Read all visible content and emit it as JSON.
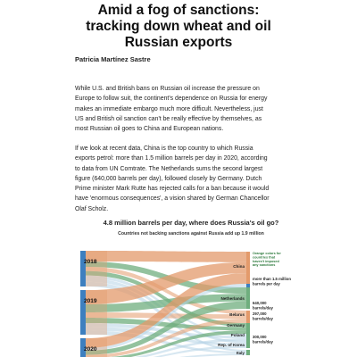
{
  "article": {
    "title_lines": [
      "Amid a fog of sanctions:",
      "tracking down wheat and oil",
      "Russian exports"
    ],
    "author": "Patricia Martínez Sastre",
    "paragraph1_lines": [
      "While U.S. and British bans on Russian oil increase the pressure on",
      "Europe to follow suit, the continent's dependence on Russia for energy",
      "makes an immediate embargo much more difficult. Nevertheless, just",
      "US and British oil sanction can't be really effective by themselves, as",
      "most Russian oil goes to China and European nations."
    ],
    "paragraph2_lines": [
      "If we look at recent data, China is the top country to which Russia",
      "exports petrol: more than 1.5 million barrels per day in 2020, according",
      "to data from UN Comtrate. The Netherlands sums the second largest",
      "figure (640,000 barrels per day), followed closely by Germany. Dutch",
      "Prime minister Mark Rutte has rejected calls for a ban because it would",
      "have 'enormous consequences', a vision shared by German Chancellor",
      "Olaf Scholz."
    ]
  },
  "chart": {
    "title": "4.8 million barrels per day, where does Russia's oil go?",
    "subtitle": "Countries not backing sanctions against Russia add up 1.9 million",
    "legend_lines": [
      "Orange colors for",
      "countries that",
      "haven't imposed",
      "any sanctions"
    ],
    "colors": {
      "sanction_free": "#e39a6b",
      "sanctioning": "#6fae7e",
      "source_bar": "#3d7fbf",
      "other_flow": "#b7d3e6",
      "legend_text": "#2c7a3c"
    }
  },
  "chart_data": {
    "type": "sankey",
    "sources": [
      "2018",
      "2019",
      "2020"
    ],
    "targets": [
      {
        "name": "China",
        "annotation_lines": [],
        "sanction_free": true
      },
      {
        "name": "",
        "annotation_lines": [
          "more than 1.5 million",
          "barrels per day"
        ],
        "sanction_free": false
      },
      {
        "name": "Netherlands",
        "annotation_lines": [
          "640,000",
          "barrels/day"
        ],
        "sanction_free": false
      },
      {
        "name": "Belarus",
        "annotation_lines": [
          "297,000",
          "barrels/day"
        ],
        "sanction_free": true
      },
      {
        "name": "Germany",
        "annotation_lines": [],
        "sanction_free": false
      },
      {
        "name": "Poland",
        "annotation_lines": [
          "300,000",
          "barrels/day"
        ],
        "sanction_free": false
      },
      {
        "name": "Rep. of Korea",
        "annotation_lines": [],
        "sanction_free": false
      },
      {
        "name": "Italy",
        "annotation_lines": [],
        "sanction_free": false
      }
    ]
  }
}
